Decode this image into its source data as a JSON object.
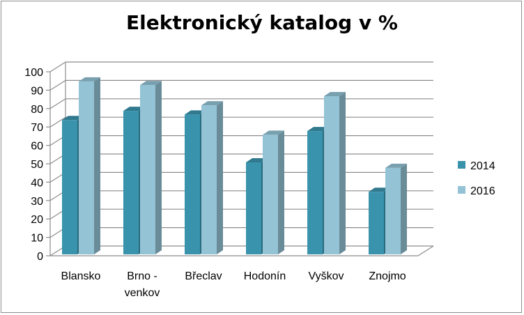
{
  "chart_data": {
    "type": "bar",
    "title": "Elektronický katalog v %",
    "categories": [
      [
        "Blansko"
      ],
      [
        "Brno -",
        "venkov"
      ],
      [
        "Břeclav"
      ],
      [
        "Hodonín"
      ],
      [
        "Vyškov"
      ],
      [
        "Znojmo"
      ]
    ],
    "series": [
      {
        "name": "2014",
        "values": [
          73,
          78,
          76,
          50,
          67,
          34
        ],
        "color": "#3a93ad"
      },
      {
        "name": "2016",
        "values": [
          94,
          92,
          81,
          65,
          86,
          47
        ],
        "color": "#93c3d5"
      }
    ],
    "ylim": [
      0,
      100
    ],
    "yticks": [
      0,
      10,
      20,
      30,
      40,
      50,
      60,
      70,
      80,
      90,
      100
    ],
    "grid": true,
    "style": "3d-clustered-column",
    "legend": "right"
  }
}
